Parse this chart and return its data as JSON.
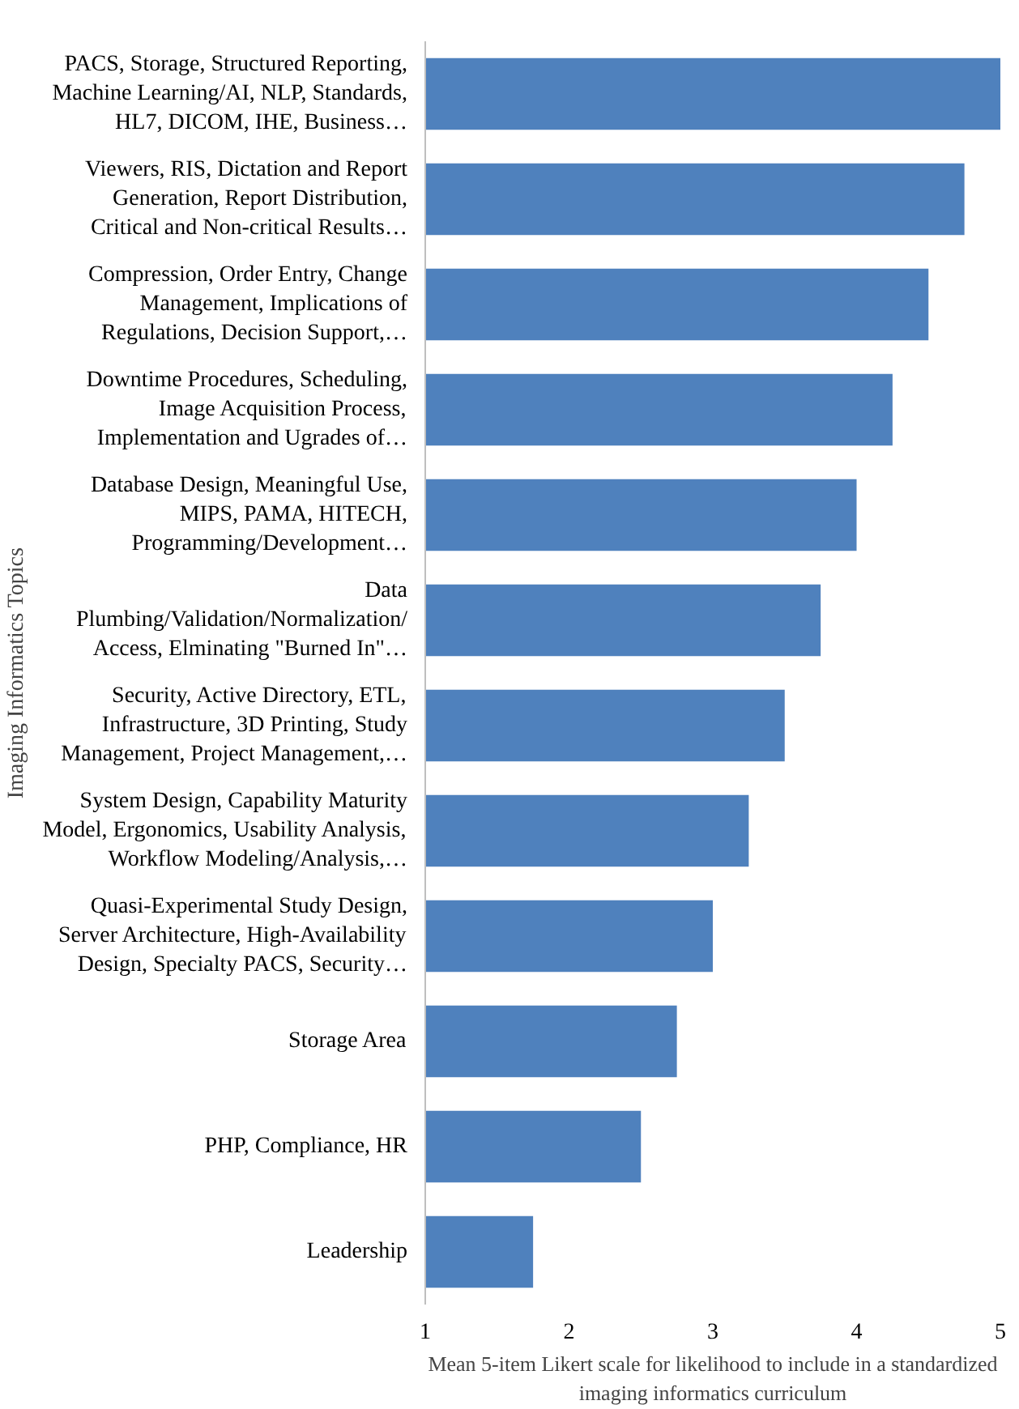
{
  "chart_data": {
    "type": "bar",
    "orientation": "horizontal",
    "xlabel": "Mean 5-item Likert scale for likelihood to include in a standardized\nimaging informatics curriculum",
    "ylabel": "Imaging Informatics Topics",
    "categories": [
      "PACS, Storage, Structured Reporting,\nMachine Learning/AI, NLP, Standards,\nHL7, DICOM, IHE, Business…",
      "Viewers, RIS, Dictation and Report\nGeneration, Report Distribution,\nCritical and Non-critical Results…",
      "Compression, Order Entry, Change\nManagement, Implications of\nRegulations, Decision Support,…",
      "Downtime Procedures, Scheduling,\nImage Acquisition Process,\nImplementation and Ugrades of…",
      "Database Design, Meaningful Use,\nMIPS, PAMA, HITECH,\nProgramming/Development…",
      "Data\nPlumbing/Validation/Normalization/\nAccess, Elminating \"Burned In\"…",
      "Security, Active Directory, ETL,\nInfrastructure, 3D Printing, Study\nManagement, Project Management,…",
      "System Design, Capability Maturity\nModel, Ergonomics, Usability Analysis,\nWorkflow Modeling/Analysis,…",
      "Quasi-Experimental Study Design,\nServer Architecture, High-Availability\nDesign, Specialty PACS, Security…",
      "Storage Area",
      "PHP, Compliance, HR",
      "Leadership"
    ],
    "values": [
      5.0,
      4.75,
      4.5,
      4.25,
      4.0,
      3.75,
      3.5,
      3.25,
      3.0,
      2.75,
      2.5,
      1.75
    ],
    "color": "#4f81bd",
    "xlim": [
      1,
      5
    ],
    "xticks": [
      1,
      2,
      3,
      4,
      5
    ],
    "grid": false
  }
}
